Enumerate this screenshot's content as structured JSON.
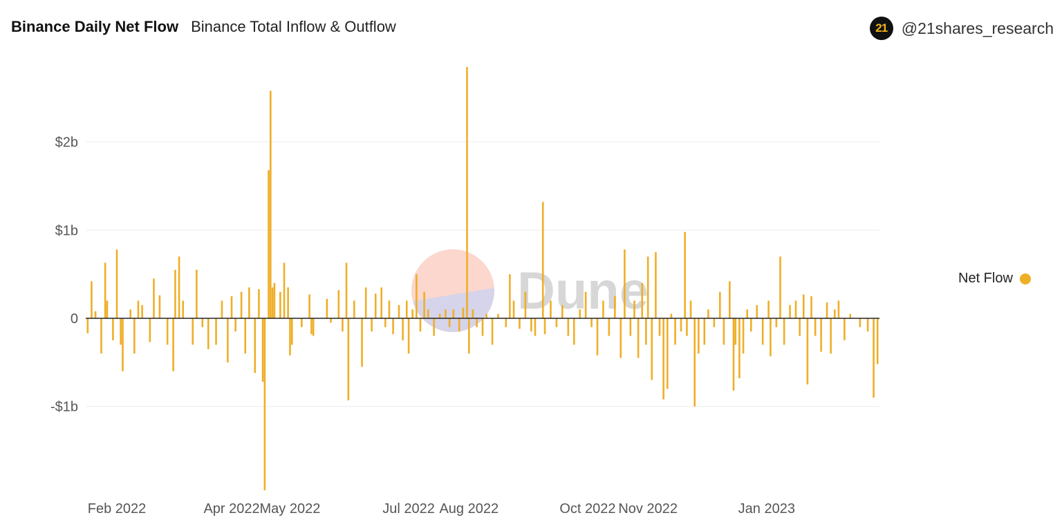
{
  "header": {
    "title": "Binance Daily Net Flow",
    "subtitle": "Binance Total Inflow & Outflow",
    "brand_logo_text": "21",
    "brand_handle": "@21shares_research"
  },
  "watermark": "Dune",
  "colors": {
    "bar": "#efae27",
    "grid": "#ececec",
    "axis_text": "#555555",
    "zero_line": "#222222"
  },
  "chart_data": {
    "type": "bar",
    "title": "Binance Daily Net Flow",
    "subtitle": "Binance Total Inflow & Outflow",
    "xlabel": "",
    "ylabel": "",
    "x_range": [
      "2022-01-16",
      "2023-02-28"
    ],
    "ylim": [
      -1.95,
      2.85
    ],
    "y_ticks": [
      {
        "value": 2,
        "label": "$2b"
      },
      {
        "value": 1,
        "label": "$1b"
      },
      {
        "value": 0,
        "label": "0"
      },
      {
        "value": -1,
        "label": "-$1b"
      }
    ],
    "x_ticks": [
      {
        "date": "2022-02-01",
        "label": "Feb 2022"
      },
      {
        "date": "2022-04-01",
        "label": "Apr 2022"
      },
      {
        "date": "2022-05-01",
        "label": "May 2022"
      },
      {
        "date": "2022-07-01",
        "label": "Jul 2022"
      },
      {
        "date": "2022-08-01",
        "label": "Aug 2022"
      },
      {
        "date": "2022-10-01",
        "label": "Oct 2022"
      },
      {
        "date": "2022-11-01",
        "label": "Nov 2022"
      },
      {
        "date": "2023-01-01",
        "label": "Jan 2023"
      }
    ],
    "grid": true,
    "legend_position": "right",
    "series": [
      {
        "name": "Net Flow",
        "unit": "USD billions",
        "points": [
          {
            "x": "2022-01-17",
            "y": -0.17
          },
          {
            "x": "2022-01-19",
            "y": 0.42
          },
          {
            "x": "2022-01-21",
            "y": 0.08
          },
          {
            "x": "2022-01-24",
            "y": -0.4
          },
          {
            "x": "2022-01-26",
            "y": 0.63
          },
          {
            "x": "2022-01-27",
            "y": 0.2
          },
          {
            "x": "2022-01-30",
            "y": -0.25
          },
          {
            "x": "2022-02-01",
            "y": 0.78
          },
          {
            "x": "2022-02-03",
            "y": -0.3
          },
          {
            "x": "2022-02-04",
            "y": -0.6
          },
          {
            "x": "2022-02-08",
            "y": 0.1
          },
          {
            "x": "2022-02-10",
            "y": -0.4
          },
          {
            "x": "2022-02-12",
            "y": 0.2
          },
          {
            "x": "2022-02-14",
            "y": 0.15
          },
          {
            "x": "2022-02-18",
            "y": -0.27
          },
          {
            "x": "2022-02-20",
            "y": 0.45
          },
          {
            "x": "2022-02-23",
            "y": 0.26
          },
          {
            "x": "2022-02-27",
            "y": -0.3
          },
          {
            "x": "2022-03-02",
            "y": -0.6
          },
          {
            "x": "2022-03-03",
            "y": 0.55
          },
          {
            "x": "2022-03-05",
            "y": 0.7
          },
          {
            "x": "2022-03-07",
            "y": 0.2
          },
          {
            "x": "2022-03-12",
            "y": -0.3
          },
          {
            "x": "2022-03-14",
            "y": 0.55
          },
          {
            "x": "2022-03-17",
            "y": -0.1
          },
          {
            "x": "2022-03-20",
            "y": -0.35
          },
          {
            "x": "2022-03-24",
            "y": -0.3
          },
          {
            "x": "2022-03-27",
            "y": 0.2
          },
          {
            "x": "2022-03-30",
            "y": -0.5
          },
          {
            "x": "2022-04-01",
            "y": 0.25
          },
          {
            "x": "2022-04-03",
            "y": -0.15
          },
          {
            "x": "2022-04-06",
            "y": 0.3
          },
          {
            "x": "2022-04-08",
            "y": -0.4
          },
          {
            "x": "2022-04-10",
            "y": 0.35
          },
          {
            "x": "2022-04-13",
            "y": -0.62
          },
          {
            "x": "2022-04-15",
            "y": 0.33
          },
          {
            "x": "2022-04-17",
            "y": -0.72
          },
          {
            "x": "2022-04-18",
            "y": -1.95
          },
          {
            "x": "2022-04-20",
            "y": 1.68
          },
          {
            "x": "2022-04-21",
            "y": 2.58
          },
          {
            "x": "2022-04-22",
            "y": 0.35
          },
          {
            "x": "2022-04-23",
            "y": 0.4
          },
          {
            "x": "2022-04-26",
            "y": 0.3
          },
          {
            "x": "2022-04-28",
            "y": 0.63
          },
          {
            "x": "2022-04-30",
            "y": 0.35
          },
          {
            "x": "2022-05-01",
            "y": -0.42
          },
          {
            "x": "2022-05-02",
            "y": -0.3
          },
          {
            "x": "2022-05-07",
            "y": -0.1
          },
          {
            "x": "2022-05-11",
            "y": 0.27
          },
          {
            "x": "2022-05-12",
            "y": -0.18
          },
          {
            "x": "2022-05-13",
            "y": -0.2
          },
          {
            "x": "2022-05-20",
            "y": 0.22
          },
          {
            "x": "2022-05-22",
            "y": -0.05
          },
          {
            "x": "2022-05-26",
            "y": 0.32
          },
          {
            "x": "2022-05-28",
            "y": -0.15
          },
          {
            "x": "2022-05-30",
            "y": 0.63
          },
          {
            "x": "2022-05-31",
            "y": -0.93
          },
          {
            "x": "2022-06-03",
            "y": 0.2
          },
          {
            "x": "2022-06-07",
            "y": -0.55
          },
          {
            "x": "2022-06-09",
            "y": 0.35
          },
          {
            "x": "2022-06-12",
            "y": -0.15
          },
          {
            "x": "2022-06-14",
            "y": 0.28
          },
          {
            "x": "2022-06-17",
            "y": 0.35
          },
          {
            "x": "2022-06-19",
            "y": -0.1
          },
          {
            "x": "2022-06-21",
            "y": 0.2
          },
          {
            "x": "2022-06-23",
            "y": -0.18
          },
          {
            "x": "2022-06-26",
            "y": 0.15
          },
          {
            "x": "2022-06-28",
            "y": -0.25
          },
          {
            "x": "2022-06-30",
            "y": 0.2
          },
          {
            "x": "2022-07-01",
            "y": -0.4
          },
          {
            "x": "2022-07-03",
            "y": 0.1
          },
          {
            "x": "2022-07-05",
            "y": 0.5
          },
          {
            "x": "2022-07-07",
            "y": -0.15
          },
          {
            "x": "2022-07-09",
            "y": 0.3
          },
          {
            "x": "2022-07-11",
            "y": 0.1
          },
          {
            "x": "2022-07-14",
            "y": -0.2
          },
          {
            "x": "2022-07-17",
            "y": 0.05
          },
          {
            "x": "2022-07-20",
            "y": 0.1
          },
          {
            "x": "2022-07-22",
            "y": -0.1
          },
          {
            "x": "2022-07-24",
            "y": 0.1
          },
          {
            "x": "2022-07-27",
            "y": -0.15
          },
          {
            "x": "2022-07-29",
            "y": 0.12
          },
          {
            "x": "2022-07-31",
            "y": 2.85
          },
          {
            "x": "2022-08-01",
            "y": -0.4
          },
          {
            "x": "2022-08-03",
            "y": 0.1
          },
          {
            "x": "2022-08-05",
            "y": -0.1
          },
          {
            "x": "2022-08-08",
            "y": -0.2
          },
          {
            "x": "2022-08-10",
            "y": 0.05
          },
          {
            "x": "2022-08-13",
            "y": -0.3
          },
          {
            "x": "2022-08-16",
            "y": 0.05
          },
          {
            "x": "2022-08-20",
            "y": -0.1
          },
          {
            "x": "2022-08-22",
            "y": 0.5
          },
          {
            "x": "2022-08-24",
            "y": 0.2
          },
          {
            "x": "2022-08-27",
            "y": -0.12
          },
          {
            "x": "2022-08-30",
            "y": 0.3
          },
          {
            "x": "2022-09-02",
            "y": -0.15
          },
          {
            "x": "2022-09-04",
            "y": -0.2
          },
          {
            "x": "2022-09-08",
            "y": 1.32
          },
          {
            "x": "2022-09-09",
            "y": -0.18
          },
          {
            "x": "2022-09-12",
            "y": 0.2
          },
          {
            "x": "2022-09-15",
            "y": -0.1
          },
          {
            "x": "2022-09-18",
            "y": 0.15
          },
          {
            "x": "2022-09-21",
            "y": -0.2
          },
          {
            "x": "2022-09-24",
            "y": -0.3
          },
          {
            "x": "2022-09-27",
            "y": 0.1
          },
          {
            "x": "2022-09-30",
            "y": 0.3
          },
          {
            "x": "2022-10-03",
            "y": -0.1
          },
          {
            "x": "2022-10-06",
            "y": -0.42
          },
          {
            "x": "2022-10-09",
            "y": 0.2
          },
          {
            "x": "2022-10-12",
            "y": -0.2
          },
          {
            "x": "2022-10-15",
            "y": 0.25
          },
          {
            "x": "2022-10-18",
            "y": -0.45
          },
          {
            "x": "2022-10-20",
            "y": 0.78
          },
          {
            "x": "2022-10-23",
            "y": -0.2
          },
          {
            "x": "2022-10-25",
            "y": 0.2
          },
          {
            "x": "2022-10-27",
            "y": -0.45
          },
          {
            "x": "2022-10-29",
            "y": 0.4
          },
          {
            "x": "2022-10-31",
            "y": -0.3
          },
          {
            "x": "2022-11-01",
            "y": 0.7
          },
          {
            "x": "2022-11-03",
            "y": -0.7
          },
          {
            "x": "2022-11-05",
            "y": 0.75
          },
          {
            "x": "2022-11-07",
            "y": -0.2
          },
          {
            "x": "2022-11-09",
            "y": -0.92
          },
          {
            "x": "2022-11-11",
            "y": -0.8
          },
          {
            "x": "2022-11-13",
            "y": 0.05
          },
          {
            "x": "2022-11-15",
            "y": -0.3
          },
          {
            "x": "2022-11-18",
            "y": -0.15
          },
          {
            "x": "2022-11-20",
            "y": 0.98
          },
          {
            "x": "2022-11-21",
            "y": -0.2
          },
          {
            "x": "2022-11-23",
            "y": 0.2
          },
          {
            "x": "2022-11-25",
            "y": -1.0
          },
          {
            "x": "2022-11-27",
            "y": -0.4
          },
          {
            "x": "2022-11-30",
            "y": -0.3
          },
          {
            "x": "2022-12-02",
            "y": 0.1
          },
          {
            "x": "2022-12-05",
            "y": -0.1
          },
          {
            "x": "2022-12-08",
            "y": 0.3
          },
          {
            "x": "2022-12-10",
            "y": -0.3
          },
          {
            "x": "2022-12-13",
            "y": 0.42
          },
          {
            "x": "2022-12-15",
            "y": -0.82
          },
          {
            "x": "2022-12-16",
            "y": -0.3
          },
          {
            "x": "2022-12-18",
            "y": -0.68
          },
          {
            "x": "2022-12-20",
            "y": -0.4
          },
          {
            "x": "2022-12-22",
            "y": 0.1
          },
          {
            "x": "2022-12-24",
            "y": -0.15
          },
          {
            "x": "2022-12-27",
            "y": 0.15
          },
          {
            "x": "2022-12-30",
            "y": -0.3
          },
          {
            "x": "2023-01-02",
            "y": 0.2
          },
          {
            "x": "2023-01-03",
            "y": -0.43
          },
          {
            "x": "2023-01-06",
            "y": -0.1
          },
          {
            "x": "2023-01-08",
            "y": 0.7
          },
          {
            "x": "2023-01-10",
            "y": -0.3
          },
          {
            "x": "2023-01-13",
            "y": 0.15
          },
          {
            "x": "2023-01-16",
            "y": 0.2
          },
          {
            "x": "2023-01-18",
            "y": -0.2
          },
          {
            "x": "2023-01-20",
            "y": 0.27
          },
          {
            "x": "2023-01-22",
            "y": -0.75
          },
          {
            "x": "2023-01-24",
            "y": 0.25
          },
          {
            "x": "2023-01-26",
            "y": -0.2
          },
          {
            "x": "2023-01-29",
            "y": -0.38
          },
          {
            "x": "2023-02-01",
            "y": 0.18
          },
          {
            "x": "2023-02-03",
            "y": -0.4
          },
          {
            "x": "2023-02-05",
            "y": 0.1
          },
          {
            "x": "2023-02-07",
            "y": 0.2
          },
          {
            "x": "2023-02-10",
            "y": -0.25
          },
          {
            "x": "2023-02-13",
            "y": 0.05
          },
          {
            "x": "2023-02-18",
            "y": -0.1
          },
          {
            "x": "2023-02-22",
            "y": -0.15
          },
          {
            "x": "2023-02-25",
            "y": -0.9
          },
          {
            "x": "2023-02-27",
            "y": -0.52
          }
        ]
      }
    ]
  },
  "legend": {
    "label": "Net Flow"
  }
}
